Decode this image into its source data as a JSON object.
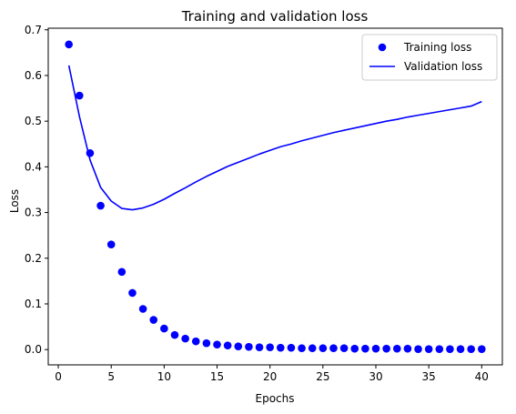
{
  "chart_data": {
    "type": "line",
    "title": "Training and validation loss",
    "xlabel": "Epochs",
    "ylabel": "Loss",
    "xlim": [
      -0.95,
      41.95
    ],
    "ylim": [
      -0.0335,
      0.7035
    ],
    "xticks": [
      0,
      5,
      10,
      15,
      20,
      25,
      30,
      35,
      40
    ],
    "yticks": [
      0.0,
      0.1,
      0.2,
      0.3,
      0.4,
      0.5,
      0.6,
      0.7
    ],
    "ytick_labels": [
      "0.0",
      "0.1",
      "0.2",
      "0.3",
      "0.4",
      "0.5",
      "0.6",
      "0.7"
    ],
    "legend_position": "top-right",
    "grid": false,
    "series": [
      {
        "name": "Training loss",
        "style": "markers",
        "color": "#0000ff",
        "x": [
          1,
          2,
          3,
          4,
          5,
          6,
          7,
          8,
          9,
          10,
          11,
          12,
          13,
          14,
          15,
          16,
          17,
          18,
          19,
          20,
          21,
          22,
          23,
          24,
          25,
          26,
          27,
          28,
          29,
          30,
          31,
          32,
          33,
          34,
          35,
          36,
          37,
          38,
          39,
          40
        ],
        "y": [
          0.668,
          0.556,
          0.43,
          0.315,
          0.23,
          0.17,
          0.124,
          0.089,
          0.065,
          0.046,
          0.032,
          0.024,
          0.018,
          0.014,
          0.011,
          0.009,
          0.007,
          0.006,
          0.005,
          0.005,
          0.004,
          0.004,
          0.003,
          0.003,
          0.003,
          0.003,
          0.003,
          0.002,
          0.002,
          0.002,
          0.002,
          0.002,
          0.002,
          0.001,
          0.001,
          0.001,
          0.001,
          0.001,
          0.001,
          0.001
        ]
      },
      {
        "name": "Validation loss",
        "style": "line",
        "color": "#0000ff",
        "x": [
          1,
          2,
          3,
          4,
          5,
          6,
          7,
          8,
          9,
          10,
          11,
          12,
          13,
          14,
          15,
          16,
          17,
          18,
          19,
          20,
          21,
          22,
          23,
          24,
          25,
          26,
          27,
          28,
          29,
          30,
          31,
          32,
          33,
          34,
          35,
          36,
          37,
          38,
          39,
          40
        ],
        "y": [
          0.622,
          0.51,
          0.415,
          0.355,
          0.325,
          0.309,
          0.306,
          0.31,
          0.318,
          0.329,
          0.342,
          0.354,
          0.367,
          0.379,
          0.39,
          0.401,
          0.41,
          0.419,
          0.428,
          0.436,
          0.444,
          0.45,
          0.457,
          0.463,
          0.469,
          0.475,
          0.48,
          0.485,
          0.49,
          0.495,
          0.5,
          0.504,
          0.509,
          0.513,
          0.517,
          0.521,
          0.525,
          0.529,
          0.533,
          0.543
        ]
      }
    ]
  }
}
